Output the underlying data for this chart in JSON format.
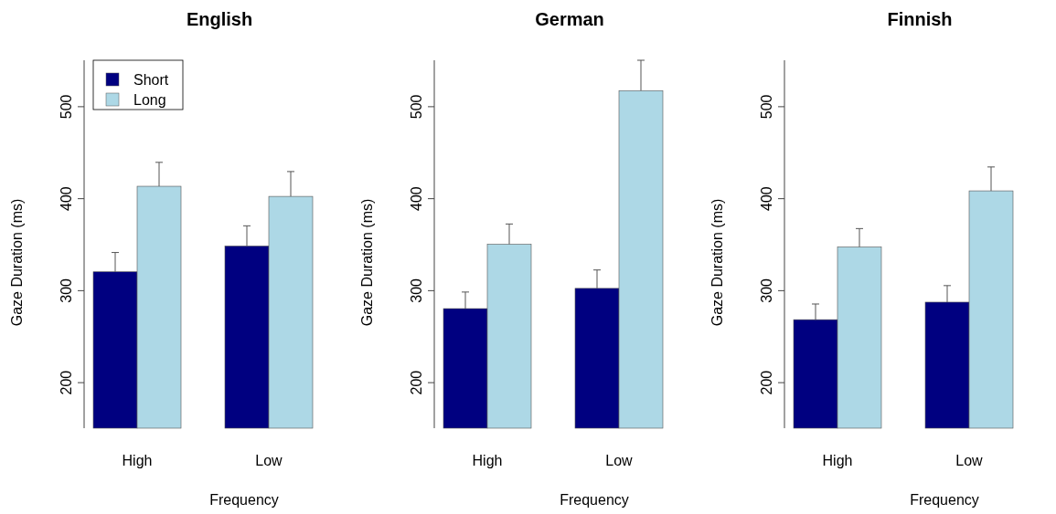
{
  "chart_data": [
    {
      "type": "bar",
      "title": "English",
      "xlabel": "Frequency",
      "ylabel": "Gaze Duration (ms)",
      "categories": [
        "High",
        "Low"
      ],
      "ylim": [
        150,
        550
      ],
      "yticks": [
        200,
        300,
        400,
        500
      ],
      "legend": "top left",
      "series": [
        {
          "name": "Short",
          "color": "#000080",
          "values": [
            320,
            348
          ],
          "errors": [
            [
              320,
              341
            ],
            [
              348,
              370
            ]
          ]
        },
        {
          "name": "Long",
          "color": "#add8e6",
          "values": [
            413,
            402
          ],
          "errors": [
            [
              413,
              439
            ],
            [
              402,
              429
            ]
          ]
        }
      ]
    },
    {
      "type": "bar",
      "title": "German",
      "xlabel": "Frequency",
      "ylabel": "Gaze Duration (ms)",
      "categories": [
        "High",
        "Low"
      ],
      "ylim": [
        150,
        550
      ],
      "yticks": [
        200,
        300,
        400,
        500
      ],
      "series": [
        {
          "color": "#000080",
          "values": [
            280,
            302
          ],
          "errors": [
            [
              280,
              298
            ],
            [
              302,
              322
            ]
          ]
        },
        {
          "color": "#add8e6",
          "values": [
            350,
            517
          ],
          "errors": [
            [
              350,
              372
            ],
            [
              517,
              550
            ]
          ]
        }
      ]
    },
    {
      "type": "bar",
      "title": "Finnish",
      "xlabel": "Frequency",
      "ylabel": "Gaze Duration (ms)",
      "categories": [
        "High",
        "Low"
      ],
      "ylim": [
        150,
        550
      ],
      "yticks": [
        200,
        300,
        400,
        500
      ],
      "series": [
        {
          "color": "#000080",
          "values": [
            268,
            287
          ],
          "errors": [
            [
              268,
              285
            ],
            [
              287,
              305
            ]
          ]
        },
        {
          "color": "#add8e6",
          "values": [
            347,
            408
          ],
          "errors": [
            [
              347,
              367
            ],
            [
              408,
              434
            ]
          ]
        }
      ]
    }
  ]
}
